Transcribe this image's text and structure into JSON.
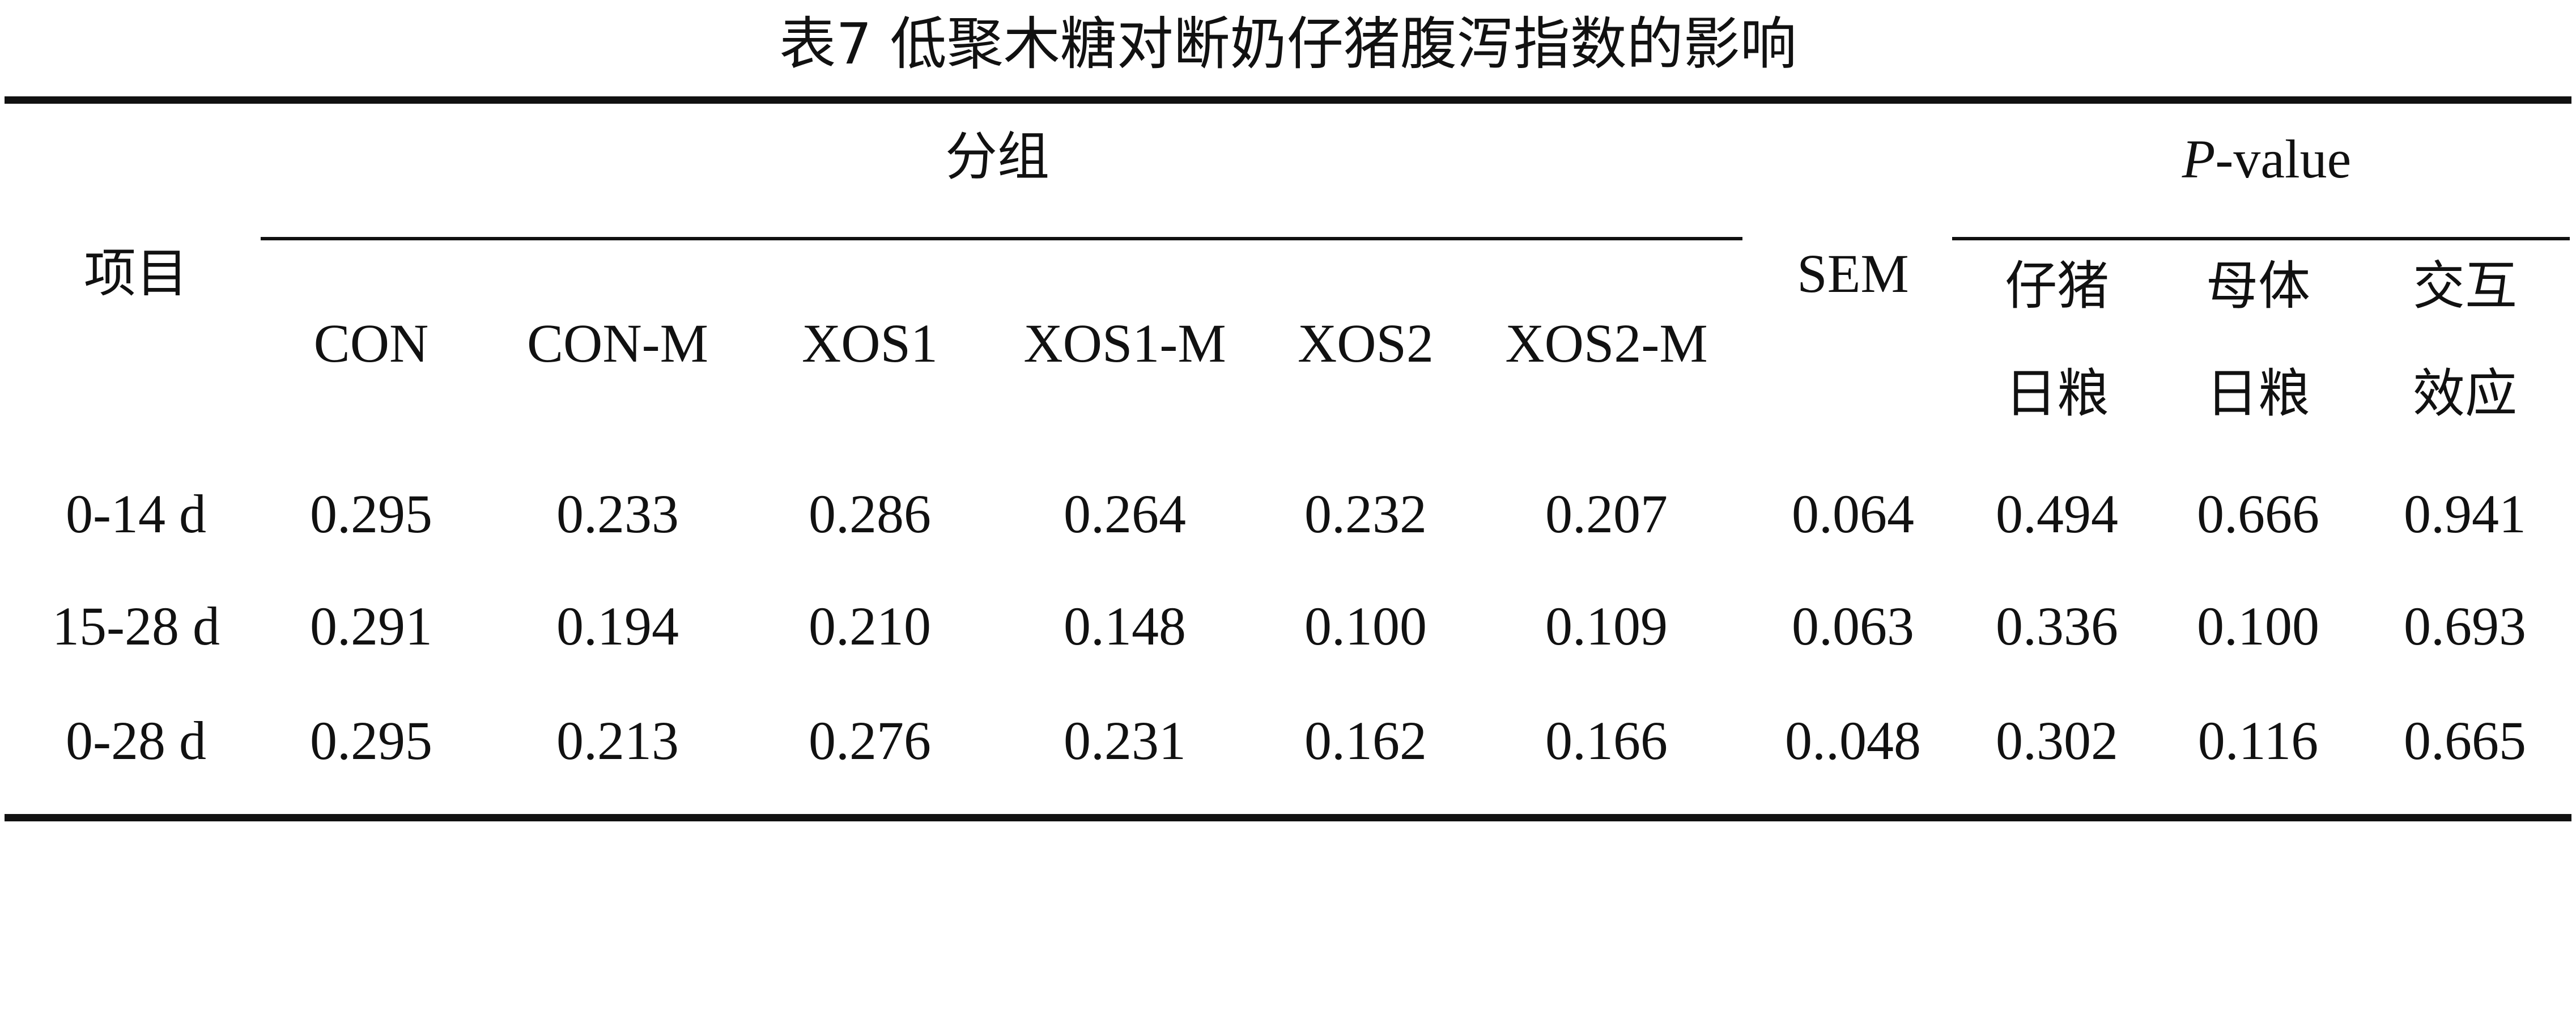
{
  "title": "表7 低聚木糖对断奶仔猪腹泻指数的影响",
  "header": {
    "item": "项目",
    "group": "分组",
    "sem": "SEM",
    "pvalue_p": "P",
    "pvalue_rest": "-value",
    "groups": [
      "CON",
      "CON-M",
      "XOS1",
      "XOS1-M",
      "XOS2",
      "XOS2-M"
    ],
    "pcols": [
      {
        "line1": "仔猪",
        "line2": "日粮"
      },
      {
        "line1": "母体",
        "line2": "日粮"
      },
      {
        "line1": "交互",
        "line2": "效应"
      }
    ]
  },
  "rows": [
    {
      "label": "0-14 d",
      "values": [
        "0.295",
        "0.233",
        "0.286",
        "0.264",
        "0.232",
        "0.207"
      ],
      "sem": "0.064",
      "p": [
        "0.494",
        "0.666",
        "0.941"
      ]
    },
    {
      "label": "15-28 d",
      "values": [
        "0.291",
        "0.194",
        "0.210",
        "0.148",
        "0.100",
        "0.109"
      ],
      "sem": "0.063",
      "p": [
        "0.336",
        "0.100",
        "0.693"
      ]
    },
    {
      "label": "0-28 d",
      "values": [
        "0.295",
        "0.213",
        "0.276",
        "0.231",
        "0.162",
        "0.166"
      ],
      "sem": "0..048",
      "p": [
        "0.302",
        "0.116",
        "0.665"
      ]
    }
  ]
}
